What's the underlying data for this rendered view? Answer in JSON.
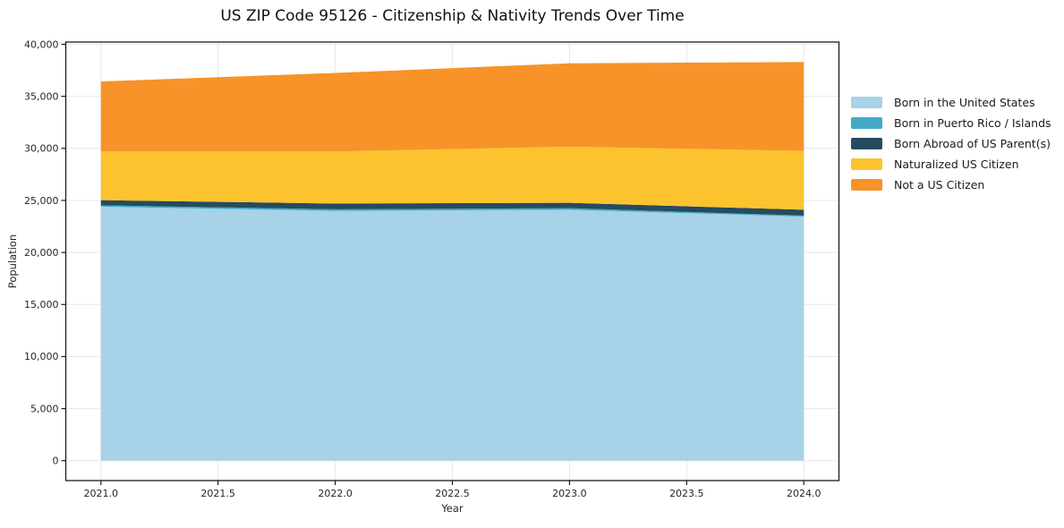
{
  "chart_data": {
    "type": "area",
    "stacked": true,
    "title": "US ZIP Code 95126 - Citizenship & Nativity Trends Over Time",
    "xlabel": "Year",
    "ylabel": "Population",
    "x": [
      2021,
      2022,
      2023,
      2024
    ],
    "series": [
      {
        "name": "Born in the United States",
        "color": "#A7D2E8",
        "values": [
          24400,
          24000,
          24100,
          23450
        ]
      },
      {
        "name": "Born in Puerto Rico / Islands",
        "color": "#43A9C7",
        "values": [
          130,
          150,
          150,
          100
        ]
      },
      {
        "name": "Born Abroad of US Parent(s)",
        "color": "#254B5E",
        "values": [
          500,
          550,
          520,
          550
        ]
      },
      {
        "name": "Naturalized US Citizen",
        "color": "#FDC32F",
        "values": [
          4700,
          5000,
          5400,
          5650
        ]
      },
      {
        "name": "Not a US Citizen",
        "color": "#F79329",
        "values": [
          6700,
          7550,
          8000,
          8550
        ]
      }
    ],
    "totals": [
      36430,
      37250,
      38170,
      38300
    ],
    "ylim": [
      0,
      40000
    ],
    "xlim": [
      2020.85,
      2024.15
    ],
    "yticks": [
      "0",
      "5,000",
      "10,000",
      "15,000",
      "20,000",
      "25,000",
      "30,000",
      "35,000",
      "40,000"
    ],
    "xticks": [
      "2021.0",
      "2021.5",
      "2022.0",
      "2022.5",
      "2023.0",
      "2023.5",
      "2024.0"
    ],
    "grid": true,
    "legend_position": "center right, outside plot",
    "colors": {
      "grid": "#e8e8e8",
      "spine": "#1a1a1a",
      "tick_label": "#262626",
      "background": "#ffffff"
    }
  }
}
